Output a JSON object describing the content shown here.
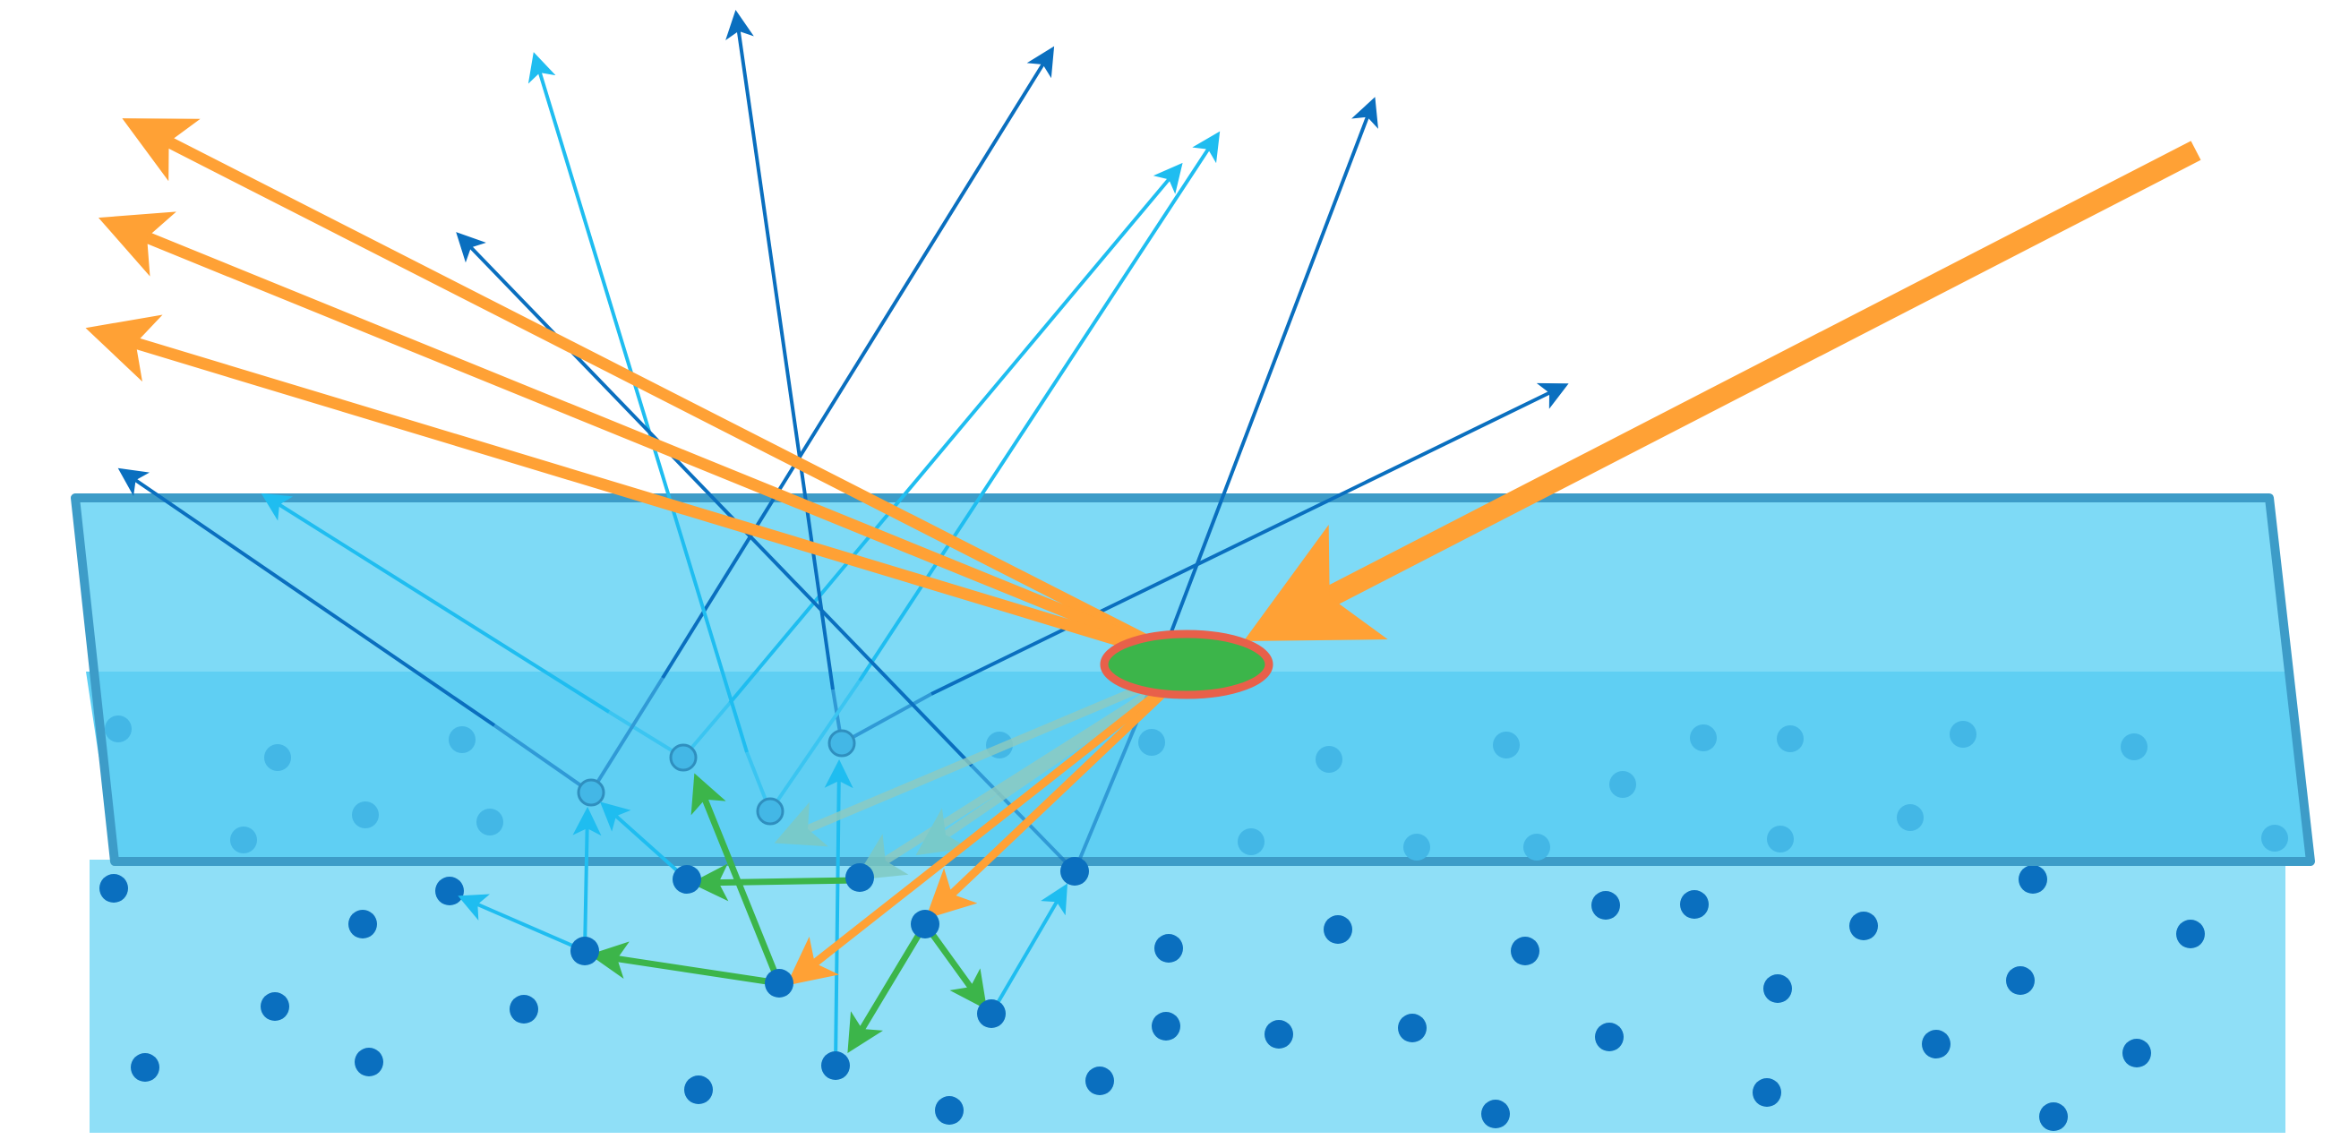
{
  "colors": {
    "background": "#ffffff",
    "substrate": "#8fdff7",
    "film_upper": "#7edaf6",
    "film_lower": "#5fcff3",
    "film_border": "#3d9cc8",
    "particle_deep": "#0a6fbf",
    "particle_film": "#43b7e6",
    "incident": "#ffa135",
    "secondary_dark": "#0a6fbf",
    "secondary_light": "#1fbdf0",
    "scatter_green": "#3cb54a",
    "spot_fill": "#3cb54a",
    "spot_ring": "#e8604a"
  }
}
